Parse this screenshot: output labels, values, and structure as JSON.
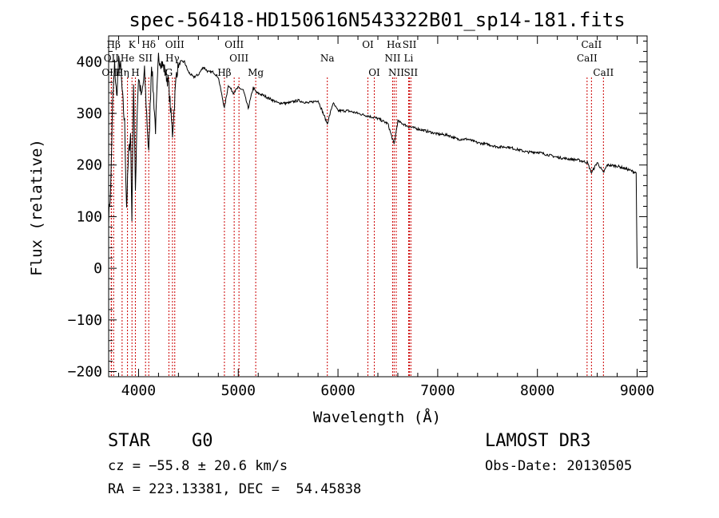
{
  "chart_data": {
    "type": "line",
    "title": "spec-56418-HD150616N543322B01_sp14-181.fits",
    "xlabel": "Wavelength (Å)",
    "ylabel": "Flux (relative)",
    "xlim": [
      3700,
      9100
    ],
    "ylim": [
      -210,
      450
    ],
    "xticks": [
      4000,
      5000,
      6000,
      7000,
      8000,
      9000
    ],
    "xtick_labels": [
      "4000",
      "5000",
      "6000",
      "7000",
      "8000",
      "9000"
    ],
    "yticks": [
      -200,
      -100,
      0,
      100,
      200,
      300,
      400
    ],
    "ytick_labels": [
      "−200",
      "−100",
      "0",
      "100",
      "200",
      "300",
      "400"
    ],
    "series": [
      {
        "name": "spectrum",
        "x": [
          3700,
          3720,
          3740,
          3760,
          3780,
          3800,
          3820,
          3840,
          3860,
          3880,
          3900,
          3920,
          3933,
          3950,
          3968,
          3985,
          4000,
          4030,
          4060,
          4102,
          4130,
          4170,
          4200,
          4250,
          4300,
          4340,
          4380,
          4420,
          4460,
          4500,
          4550,
          4600,
          4650,
          4700,
          4750,
          4800,
          4861,
          4900,
          4950,
          5000,
          5050,
          5100,
          5150,
          5183,
          5250,
          5300,
          5400,
          5500,
          5600,
          5700,
          5800,
          5893,
          5950,
          6000,
          6100,
          6200,
          6300,
          6400,
          6500,
          6563,
          6600,
          6700,
          6800,
          6900,
          7000,
          7100,
          7200,
          7300,
          7400,
          7500,
          7600,
          7700,
          7800,
          7900,
          8000,
          8100,
          8200,
          8300,
          8400,
          8500,
          8542,
          8600,
          8662,
          8700,
          8800,
          8900,
          8990,
          9000
        ],
        "y": [
          100,
          150,
          320,
          395,
          330,
          400,
          390,
          330,
          280,
          120,
          220,
          260,
          100,
          360,
          150,
          300,
          370,
          330,
          380,
          220,
          400,
          270,
          410,
          390,
          360,
          260,
          380,
          400,
          400,
          380,
          370,
          375,
          390,
          380,
          380,
          370,
          310,
          355,
          340,
          350,
          345,
          310,
          350,
          340,
          335,
          330,
          320,
          320,
          325,
          320,
          325,
          280,
          320,
          305,
          305,
          300,
          295,
          290,
          280,
          240,
          285,
          275,
          270,
          265,
          260,
          258,
          250,
          250,
          243,
          240,
          235,
          235,
          230,
          225,
          225,
          220,
          215,
          212,
          210,
          205,
          185,
          205,
          185,
          200,
          198,
          192,
          185,
          0
        ]
      }
    ],
    "line_markers": [
      {
        "label": "Hβ",
        "wave": 3750,
        "row": 0
      },
      {
        "label": "K",
        "wave": 3934,
        "row": 0
      },
      {
        "label": "Hδ",
        "wave": 4102,
        "row": 0
      },
      {
        "label": "OIII",
        "wave": 4363,
        "row": 0
      },
      {
        "label": "OIII",
        "wave": 4959,
        "row": 0
      },
      {
        "label": "OI",
        "wave": 6300,
        "row": 0
      },
      {
        "label": "Hα",
        "wave": 6563,
        "row": 0
      },
      {
        "label": "SII",
        "wave": 6717,
        "row": 0
      },
      {
        "label": "CaII",
        "wave": 8542,
        "row": 0
      },
      {
        "label": "OII",
        "wave": 3727,
        "row": 1
      },
      {
        "label": "He",
        "wave": 3889,
        "row": 1
      },
      {
        "label": "SII",
        "wave": 4070,
        "row": 1
      },
      {
        "label": "Hγ",
        "wave": 4340,
        "row": 1
      },
      {
        "label": "OIII",
        "wave": 5007,
        "row": 1
      },
      {
        "label": "Na",
        "wave": 5893,
        "row": 1
      },
      {
        "label": "NII",
        "wave": 6548,
        "row": 1
      },
      {
        "label": "Li",
        "wave": 6708,
        "row": 1
      },
      {
        "label": "CaII",
        "wave": 8498,
        "row": 1
      },
      {
        "label": "OIII",
        "wave": 3727,
        "row": 2
      },
      {
        "label": "Hη",
        "wave": 3835,
        "row": 2
      },
      {
        "label": "H",
        "wave": 3968,
        "row": 2
      },
      {
        "label": "G",
        "wave": 4304,
        "row": 2
      },
      {
        "label": "Hβ",
        "wave": 4861,
        "row": 2
      },
      {
        "label": "Mg",
        "wave": 5175,
        "row": 2
      },
      {
        "label": "OI",
        "wave": 6364,
        "row": 2
      },
      {
        "label": "NII",
        "wave": 6584,
        "row": 2
      },
      {
        "label": "SII",
        "wave": 6731,
        "row": 2
      },
      {
        "label": "CaII",
        "wave": 8662,
        "row": 2
      }
    ]
  },
  "info": {
    "object_class": "STAR",
    "subclass": "G0",
    "survey": "LAMOST DR3",
    "cz": "cz = −55.8 ± 20.6 km/s",
    "obs_date": "Obs-Date: 20130505",
    "coords": "RA = 223.13381, DEC =  54.45838"
  }
}
